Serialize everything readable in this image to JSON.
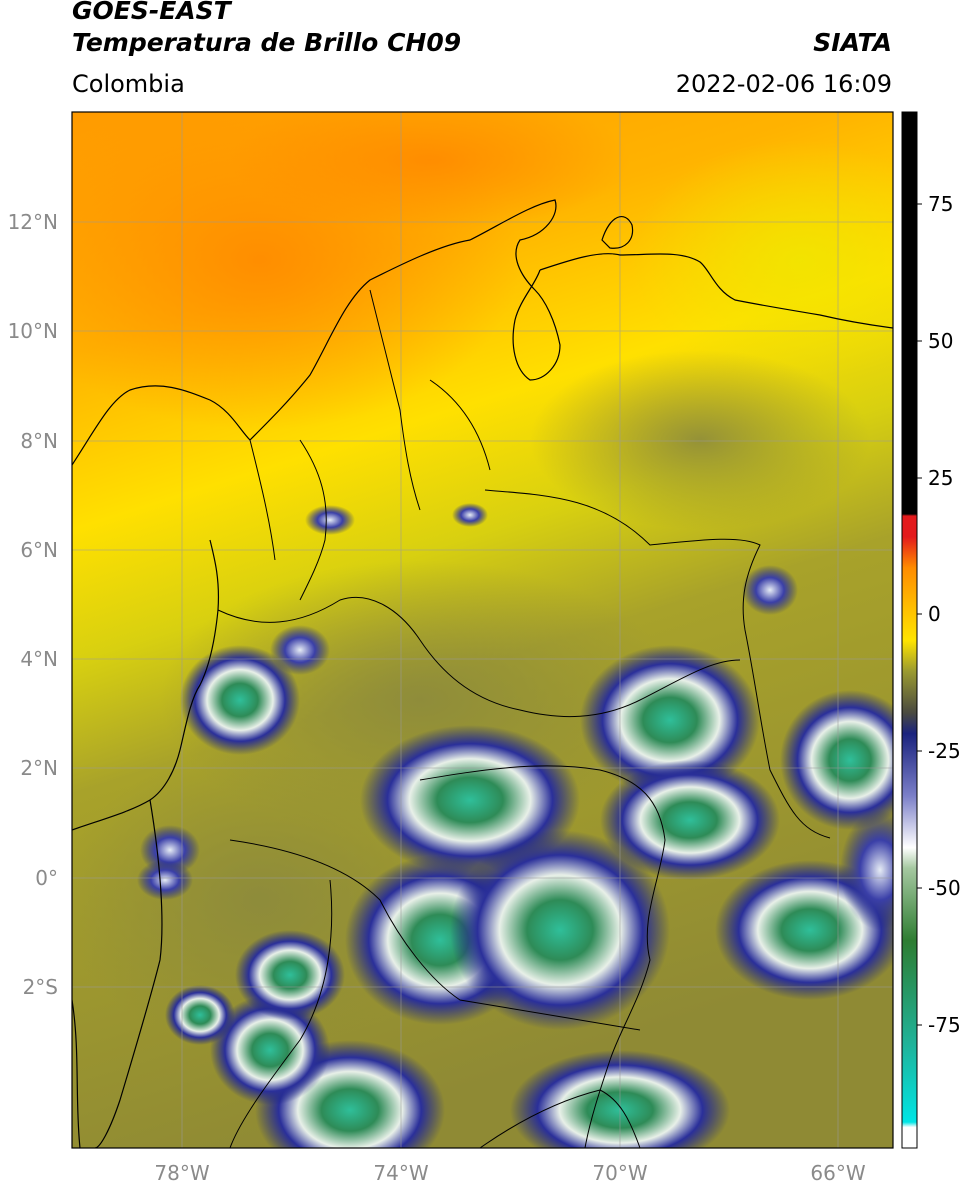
{
  "header": {
    "title_line1": "GOES-EAST",
    "title_line2": "Temperatura de Brillo CH09",
    "source": "SIATA",
    "region": "Colombia",
    "datetime": "2022-02-06 16:09"
  },
  "map": {
    "lat_labels": [
      "12°N",
      "10°N",
      "8°N",
      "6°N",
      "4°N",
      "2°N",
      "0°",
      "2°S"
    ],
    "lon_labels": [
      "78°W",
      "74°W",
      "70°W",
      "66°W"
    ],
    "extent": {
      "lon_min": -80,
      "lon_max": -65,
      "lat_min": -5,
      "lat_max": 14
    }
  },
  "colorbar": {
    "ticks": [
      "75",
      "50",
      "25",
      "0",
      "-25",
      "-50",
      "-75"
    ],
    "colors": [
      "#000000",
      "#e31a1c",
      "#ff8c00",
      "#ffe400",
      "#8c8c32",
      "#1a237e",
      "#ffffff",
      "#2e7d32",
      "#00e5e5"
    ]
  }
}
